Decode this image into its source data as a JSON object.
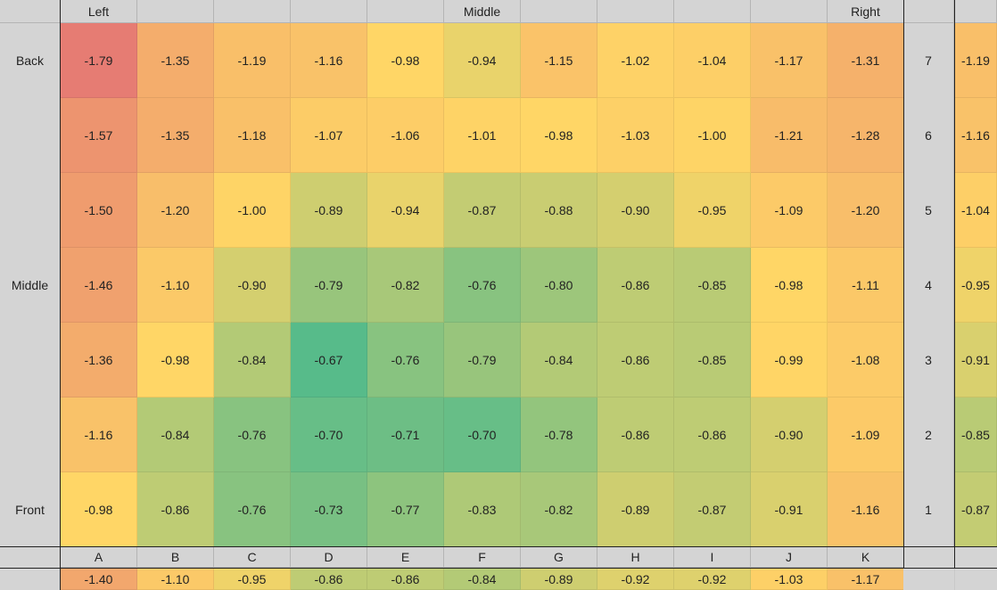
{
  "top_labels": {
    "left": "Left",
    "middle": "Middle",
    "right": "Right"
  },
  "row_labels": [
    "Back",
    "",
    "",
    "Middle",
    "",
    "",
    "Front"
  ],
  "row_numbers": [
    "7",
    "6",
    "5",
    "4",
    "3",
    "2",
    "1"
  ],
  "column_letters": [
    "A",
    "B",
    "C",
    "D",
    "E",
    "F",
    "G",
    "H",
    "I",
    "J",
    "K"
  ],
  "rows": [
    [
      "-1.79",
      "-1.35",
      "-1.19",
      "-1.16",
      "-0.98",
      "-0.94",
      "-1.15",
      "-1.02",
      "-1.04",
      "-1.17",
      "-1.31"
    ],
    [
      "-1.57",
      "-1.35",
      "-1.18",
      "-1.07",
      "-1.06",
      "-1.01",
      "-0.98",
      "-1.03",
      "-1.00",
      "-1.21",
      "-1.28"
    ],
    [
      "-1.50",
      "-1.20",
      "-1.00",
      "-0.89",
      "-0.94",
      "-0.87",
      "-0.88",
      "-0.90",
      "-0.95",
      "-1.09",
      "-1.20"
    ],
    [
      "-1.46",
      "-1.10",
      "-0.90",
      "-0.79",
      "-0.82",
      "-0.76",
      "-0.80",
      "-0.86",
      "-0.85",
      "-0.98",
      "-1.11"
    ],
    [
      "-1.36",
      "-0.98",
      "-0.84",
      "-0.67",
      "-0.76",
      "-0.79",
      "-0.84",
      "-0.86",
      "-0.85",
      "-0.99",
      "-1.08"
    ],
    [
      "-1.16",
      "-0.84",
      "-0.76",
      "-0.70",
      "-0.71",
      "-0.70",
      "-0.78",
      "-0.86",
      "-0.86",
      "-0.90",
      "-1.09"
    ],
    [
      "-0.98",
      "-0.86",
      "-0.76",
      "-0.73",
      "-0.77",
      "-0.83",
      "-0.82",
      "-0.89",
      "-0.87",
      "-0.91",
      "-1.16"
    ]
  ],
  "row_averages": [
    "-1.19",
    "-1.16",
    "-1.04",
    "-0.95",
    "-0.91",
    "-0.85",
    "-0.87"
  ],
  "column_averages": [
    "-1.40",
    "-1.10",
    "-0.95",
    "-0.86",
    "-0.86",
    "-0.84",
    "-0.89",
    "-0.92",
    "-0.92",
    "-1.03",
    "-1.17"
  ],
  "color_scale": {
    "low": "#e67c73",
    "mid": "#ffd666",
    "high": "#57bb8a"
  }
}
